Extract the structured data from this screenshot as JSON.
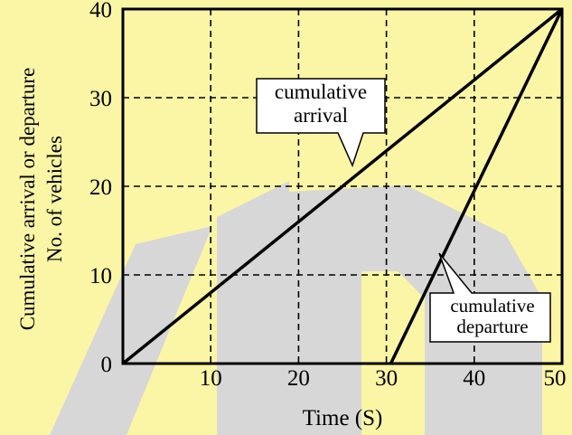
{
  "chart_data": {
    "type": "line",
    "title": "",
    "xlabel": "Time (S)",
    "ylabel_lines": [
      "Cumulative arrival or departure",
      "No. of vehicles"
    ],
    "xlim": [
      0,
      50
    ],
    "ylim": [
      0,
      40
    ],
    "x_ticks": [
      0,
      10,
      20,
      30,
      40,
      50
    ],
    "y_ticks": [
      0,
      10,
      20,
      30,
      40
    ],
    "x_tick_labels": [
      "10",
      "20",
      "30",
      "40",
      "50"
    ],
    "y_tick_labels": [
      "0",
      "10",
      "20",
      "30",
      "40"
    ],
    "grid": true,
    "grid_style": "dashed",
    "series": [
      {
        "name": "cumulative arrival",
        "x": [
          0,
          50
        ],
        "y": [
          0,
          40
        ]
      },
      {
        "name": "cumulative departure",
        "x": [
          30.5,
          50
        ],
        "y": [
          0,
          40
        ]
      }
    ],
    "annotations": [
      {
        "lines": [
          "cumulative",
          "arrival"
        ],
        "points_to": "cumulative arrival"
      },
      {
        "lines": [
          "cumulative",
          "departure"
        ],
        "points_to": "cumulative departure"
      }
    ]
  },
  "colors": {
    "background": "#ffffff",
    "watermark": "#fbf6a6",
    "watermark_dark": "#d7d7d7",
    "line": "#000000",
    "grid": "#000000"
  }
}
